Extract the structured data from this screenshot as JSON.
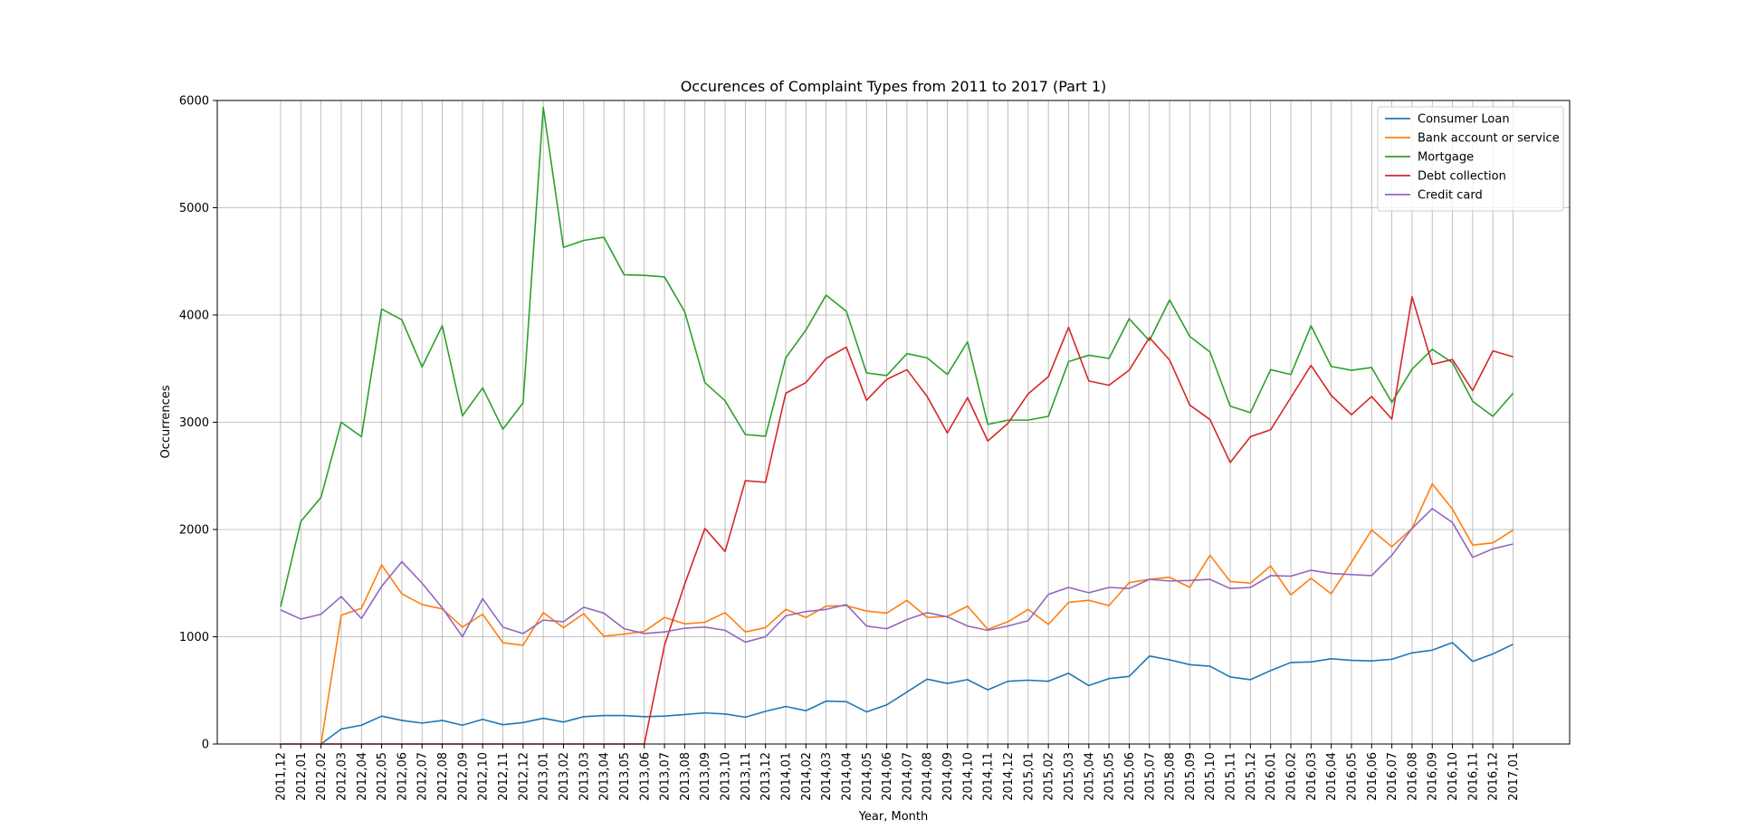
{
  "chart_data": {
    "type": "line",
    "title": "Occurences of Complaint Types from 2011 to 2017 (Part 1)",
    "xlabel": "Year, Month",
    "ylabel": "Occurrences",
    "ylim": [
      0,
      6000
    ],
    "yticks": [
      "0",
      "1000",
      "2000",
      "3000",
      "4000",
      "5000",
      "6000"
    ],
    "grid": true,
    "legend_position": "top-right",
    "categories": [
      "2011,12",
      "2012,01",
      "2012,02",
      "2012,03",
      "2012,04",
      "2012,05",
      "2012,06",
      "2012,07",
      "2012,08",
      "2012,09",
      "2012,10",
      "2012,11",
      "2012,12",
      "2013,01",
      "2013,02",
      "2013,03",
      "2013,04",
      "2013,05",
      "2013,06",
      "2013,07",
      "2013,08",
      "2013,09",
      "2013,10",
      "2013,11",
      "2013,12",
      "2014,01",
      "2014,02",
      "2014,03",
      "2014,04",
      "2014,05",
      "2014,06",
      "2014,07",
      "2014,08",
      "2014,09",
      "2014,10",
      "2014,11",
      "2014,12",
      "2015,01",
      "2015,02",
      "2015,03",
      "2015,04",
      "2015,05",
      "2015,06",
      "2015,07",
      "2015,08",
      "2015,09",
      "2015,10",
      "2015,11",
      "2015,12",
      "2016,01",
      "2016,02",
      "2016,03",
      "2016,04",
      "2016,05",
      "2016,06",
      "2016,07",
      "2016,08",
      "2016,09",
      "2016,10",
      "2016,11",
      "2016,12",
      "2017,01"
    ],
    "series": [
      {
        "name": "Consumer Loan",
        "color": "#1f77b4",
        "values": [
          null,
          null,
          0,
          140,
          175,
          260,
          220,
          195,
          220,
          175,
          230,
          180,
          200,
          240,
          205,
          255,
          265,
          265,
          255,
          260,
          275,
          290,
          280,
          250,
          305,
          350,
          310,
          400,
          395,
          300,
          365,
          485,
          605,
          565,
          600,
          505,
          585,
          595,
          585,
          660,
          545,
          610,
          630,
          820,
          785,
          740,
          725,
          625,
          600,
          685,
          760,
          765,
          795,
          780,
          775,
          790,
          850,
          875,
          945,
          770,
          840,
          930
        ]
      },
      {
        "name": "Bank account or service",
        "color": "#ff7f0e",
        "values": [
          null,
          null,
          0,
          1200,
          1265,
          1670,
          1400,
          1300,
          1260,
          1090,
          1210,
          945,
          920,
          1225,
          1085,
          1215,
          1005,
          1025,
          1050,
          1180,
          1120,
          1135,
          1225,
          1045,
          1085,
          1255,
          1180,
          1285,
          1290,
          1240,
          1220,
          1340,
          1180,
          1190,
          1285,
          1070,
          1140,
          1255,
          1115,
          1320,
          1340,
          1290,
          1505,
          1535,
          1555,
          1460,
          1760,
          1515,
          1500,
          1660,
          1390,
          1545,
          1400,
          1695,
          1995,
          1840,
          2010,
          2425,
          2190,
          1855,
          1875,
          1995
        ]
      },
      {
        "name": "Mortgage",
        "color": "#2ca02c",
        "values": [
          1280,
          2075,
          2300,
          3000,
          2865,
          4055,
          3955,
          3515,
          3900,
          3060,
          3320,
          2935,
          3180,
          5935,
          4630,
          4695,
          4725,
          4375,
          4370,
          4355,
          4030,
          3370,
          3200,
          2885,
          2870,
          3600,
          3860,
          4185,
          4035,
          3460,
          3435,
          3640,
          3600,
          3445,
          3750,
          2980,
          3020,
          3020,
          3055,
          3565,
          3625,
          3595,
          3965,
          3760,
          4140,
          3800,
          3655,
          3150,
          3090,
          3490,
          3445,
          3900,
          3520,
          3485,
          3510,
          3185,
          3495,
          3680,
          3555,
          3195,
          3055,
          3270
        ]
      },
      {
        "name": "Debt collection",
        "color": "#d62728",
        "values": [
          0,
          0,
          0,
          0,
          0,
          0,
          0,
          0,
          0,
          0,
          0,
          0,
          0,
          0,
          0,
          0,
          0,
          0,
          0,
          920,
          1490,
          2010,
          1795,
          2455,
          2440,
          3270,
          3370,
          3595,
          3700,
          3205,
          3400,
          3490,
          3240,
          2900,
          3230,
          2825,
          2990,
          3265,
          3425,
          3885,
          3385,
          3345,
          3485,
          3790,
          3580,
          3160,
          3025,
          2625,
          2865,
          2930,
          3230,
          3530,
          3250,
          3070,
          3240,
          3030,
          4170,
          3540,
          3585,
          3295,
          3665,
          3610
        ]
      },
      {
        "name": "Credit card",
        "color": "#9467bd",
        "values": [
          1250,
          1165,
          1210,
          1375,
          1170,
          1470,
          1700,
          1500,
          1270,
          1000,
          1355,
          1090,
          1030,
          1155,
          1140,
          1275,
          1220,
          1075,
          1030,
          1045,
          1080,
          1090,
          1060,
          950,
          1000,
          1195,
          1235,
          1255,
          1300,
          1100,
          1075,
          1160,
          1225,
          1185,
          1100,
          1060,
          1100,
          1150,
          1395,
          1460,
          1410,
          1460,
          1450,
          1535,
          1520,
          1525,
          1535,
          1450,
          1460,
          1570,
          1565,
          1620,
          1590,
          1580,
          1570,
          1760,
          2010,
          2195,
          2065,
          1740,
          1820,
          1865
        ]
      }
    ]
  }
}
